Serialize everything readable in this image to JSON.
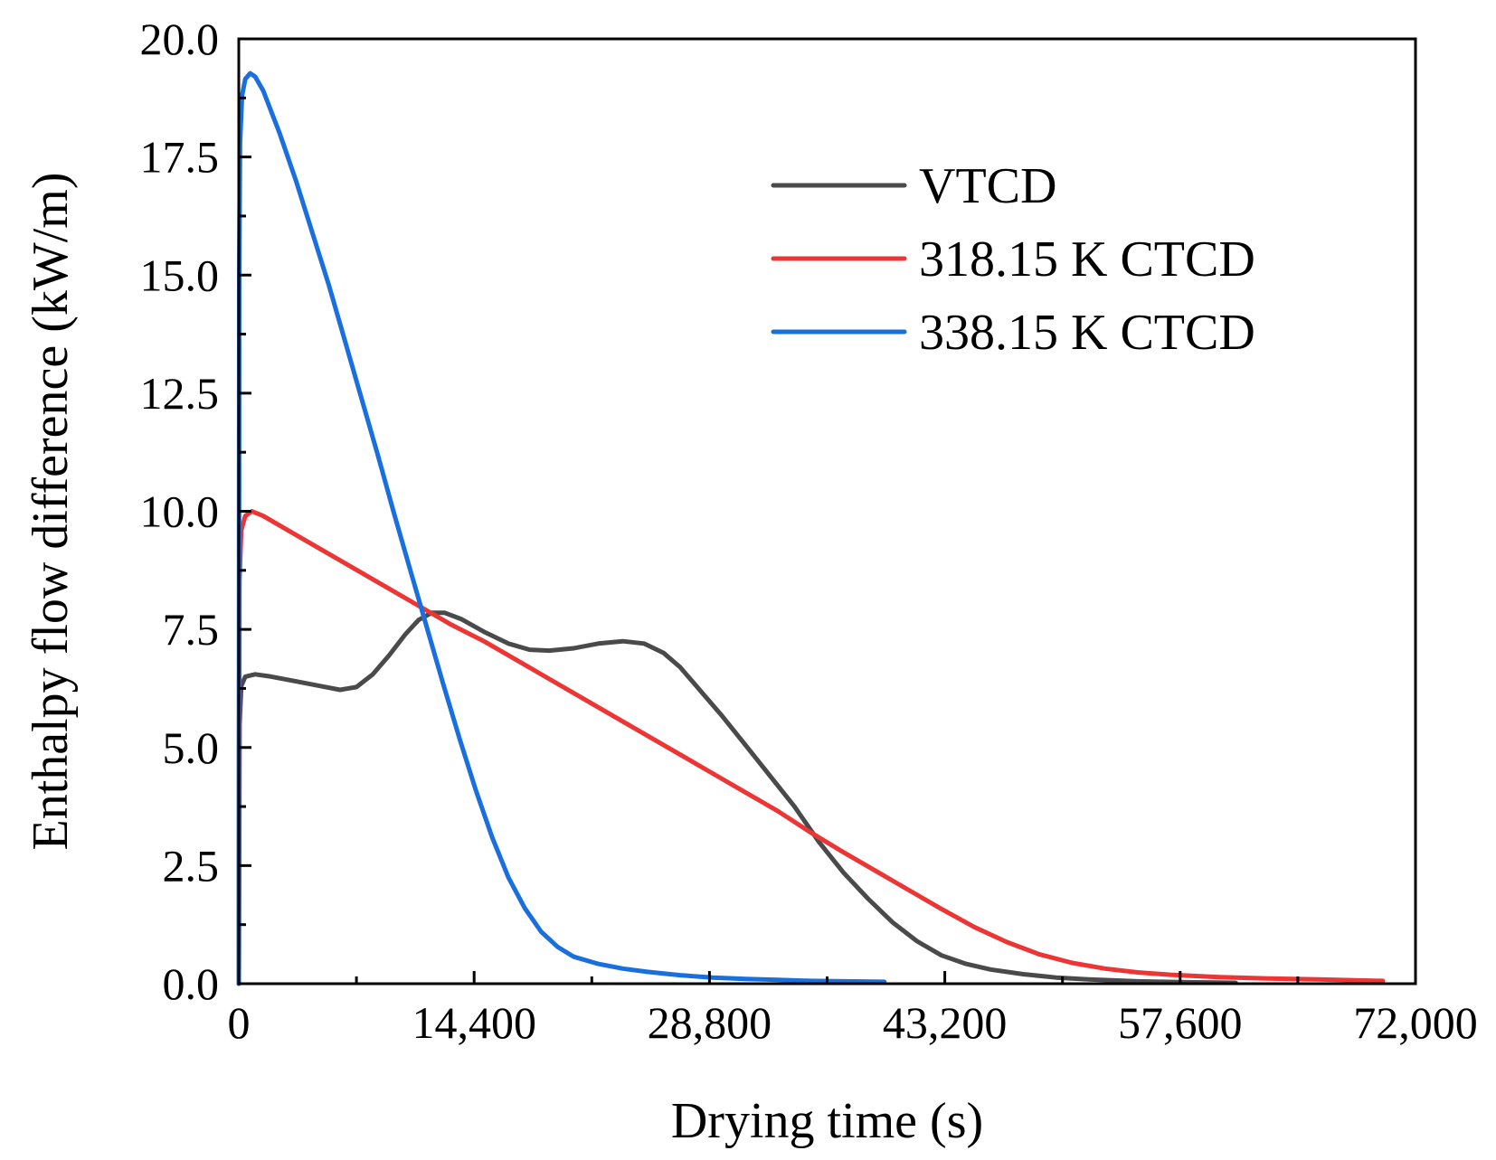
{
  "chart_data": {
    "type": "line",
    "xlabel": "Drying time (s)",
    "ylabel": "Enthalpy flow difference (kW/m)",
    "xlim": [
      0,
      72000
    ],
    "ylim": [
      0,
      20
    ],
    "x_ticks": [
      0,
      14400,
      28800,
      43200,
      57600,
      72000
    ],
    "x_tick_labels": [
      "0",
      "14,400",
      "28,800",
      "43,200",
      "57,600",
      "72,000"
    ],
    "x_minor_ticks": [
      7200,
      21600,
      36000,
      50400,
      64800
    ],
    "y_ticks": [
      0,
      2.5,
      5,
      7.5,
      10,
      12.5,
      15,
      17.5,
      20
    ],
    "y_tick_labels": [
      "0.0",
      "2.5",
      "5.0",
      "7.5",
      "10.0",
      "12.5",
      "15.0",
      "17.5",
      "20.0"
    ],
    "y_minor_ticks": [
      1.25,
      3.75,
      6.25,
      8.75,
      11.25,
      13.75,
      16.25,
      18.75
    ],
    "grid": false,
    "legend_position": "top-right",
    "series": [
      {
        "name": "VTCD",
        "color": "#4a4a4a",
        "points": [
          [
            0,
            0
          ],
          [
            50,
            5.5
          ],
          [
            150,
            6.3
          ],
          [
            400,
            6.5
          ],
          [
            1000,
            6.55
          ],
          [
            2000,
            6.5
          ],
          [
            3500,
            6.4
          ],
          [
            5000,
            6.3
          ],
          [
            6200,
            6.22
          ],
          [
            7200,
            6.28
          ],
          [
            8200,
            6.55
          ],
          [
            9200,
            6.95
          ],
          [
            10200,
            7.4
          ],
          [
            11000,
            7.7
          ],
          [
            11800,
            7.85
          ],
          [
            12600,
            7.85
          ],
          [
            13600,
            7.72
          ],
          [
            15000,
            7.45
          ],
          [
            16500,
            7.2
          ],
          [
            17800,
            7.07
          ],
          [
            19000,
            7.05
          ],
          [
            20500,
            7.1
          ],
          [
            22000,
            7.2
          ],
          [
            23500,
            7.25
          ],
          [
            24800,
            7.2
          ],
          [
            26000,
            7.0
          ],
          [
            27000,
            6.7
          ],
          [
            28000,
            6.3
          ],
          [
            29500,
            5.7
          ],
          [
            31000,
            5.05
          ],
          [
            32500,
            4.4
          ],
          [
            34000,
            3.75
          ],
          [
            35500,
            3.0
          ],
          [
            37000,
            2.35
          ],
          [
            38500,
            1.8
          ],
          [
            40000,
            1.3
          ],
          [
            41500,
            0.9
          ],
          [
            43000,
            0.6
          ],
          [
            44500,
            0.42
          ],
          [
            46000,
            0.3
          ],
          [
            48000,
            0.2
          ],
          [
            50000,
            0.13
          ],
          [
            52000,
            0.09
          ],
          [
            55000,
            0.05
          ],
          [
            58000,
            0.03
          ],
          [
            61000,
            0.02
          ]
        ]
      },
      {
        "name": "318.15 K CTCD",
        "color": "#ee3535",
        "points": [
          [
            0,
            0
          ],
          [
            40,
            8.5
          ],
          [
            150,
            9.6
          ],
          [
            400,
            9.9
          ],
          [
            800,
            10.0
          ],
          [
            1500,
            9.9
          ],
          [
            3000,
            9.6
          ],
          [
            5000,
            9.2
          ],
          [
            7000,
            8.8
          ],
          [
            9000,
            8.4
          ],
          [
            11000,
            8.0
          ],
          [
            13000,
            7.6
          ],
          [
            15000,
            7.25
          ],
          [
            17000,
            6.85
          ],
          [
            19000,
            6.45
          ],
          [
            21000,
            6.05
          ],
          [
            23000,
            5.65
          ],
          [
            25000,
            5.25
          ],
          [
            27000,
            4.85
          ],
          [
            29000,
            4.45
          ],
          [
            31000,
            4.05
          ],
          [
            33000,
            3.65
          ],
          [
            35000,
            3.2
          ],
          [
            37000,
            2.78
          ],
          [
            39000,
            2.38
          ],
          [
            41000,
            1.98
          ],
          [
            43000,
            1.58
          ],
          [
            45000,
            1.2
          ],
          [
            47000,
            0.88
          ],
          [
            49000,
            0.62
          ],
          [
            51000,
            0.44
          ],
          [
            53000,
            0.32
          ],
          [
            55000,
            0.24
          ],
          [
            57000,
            0.19
          ],
          [
            60000,
            0.14
          ],
          [
            63000,
            0.11
          ],
          [
            66000,
            0.09
          ],
          [
            70000,
            0.06
          ]
        ]
      },
      {
        "name": "338.15 K CTCD",
        "color": "#1a6fde",
        "points": [
          [
            0,
            0
          ],
          [
            30,
            15.0
          ],
          [
            80,
            17.8
          ],
          [
            200,
            18.8
          ],
          [
            400,
            19.15
          ],
          [
            700,
            19.27
          ],
          [
            1000,
            19.2
          ],
          [
            1500,
            18.9
          ],
          [
            2500,
            18.0
          ],
          [
            3500,
            17.0
          ],
          [
            4500,
            15.9
          ],
          [
            5500,
            14.8
          ],
          [
            6500,
            13.6
          ],
          [
            7500,
            12.4
          ],
          [
            8500,
            11.2
          ],
          [
            9500,
            9.95
          ],
          [
            10500,
            8.75
          ],
          [
            11500,
            7.55
          ],
          [
            12500,
            6.35
          ],
          [
            13500,
            5.2
          ],
          [
            14500,
            4.1
          ],
          [
            15500,
            3.1
          ],
          [
            16500,
            2.25
          ],
          [
            17500,
            1.6
          ],
          [
            18500,
            1.1
          ],
          [
            19500,
            0.78
          ],
          [
            20500,
            0.57
          ],
          [
            22000,
            0.42
          ],
          [
            23500,
            0.32
          ],
          [
            25000,
            0.25
          ],
          [
            27000,
            0.18
          ],
          [
            29000,
            0.13
          ],
          [
            31000,
            0.1
          ],
          [
            33000,
            0.08
          ],
          [
            35000,
            0.06
          ],
          [
            37000,
            0.05
          ],
          [
            39500,
            0.04
          ]
        ]
      }
    ]
  }
}
